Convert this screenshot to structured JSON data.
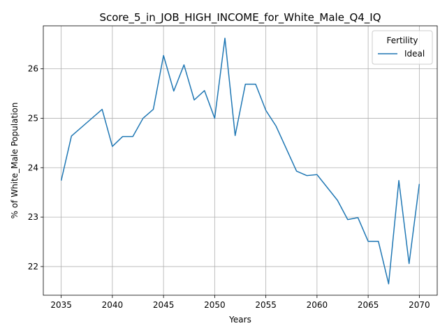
{
  "chart_data": {
    "type": "line",
    "title": "Score_5_in_JOB_HIGH_INCOME_for_White_Male_Q4_IQ",
    "xlabel": "Years",
    "ylabel": "% of White_Male Population",
    "xlim": [
      2033.25,
      2071.75
    ],
    "ylim": [
      21.42,
      26.87
    ],
    "xticks": [
      2035,
      2040,
      2045,
      2050,
      2055,
      2060,
      2065,
      2070
    ],
    "yticks": [
      22,
      23,
      24,
      25,
      26
    ],
    "grid": true,
    "legend": {
      "title": "Fertility",
      "position": "top-right"
    },
    "series": [
      {
        "name": "Ideal",
        "color": "#1f77b4",
        "x": [
          2035,
          2036,
          2039,
          2040,
          2041,
          2042,
          2043,
          2044,
          2045,
          2046,
          2047,
          2048,
          2049,
          2050,
          2051,
          2052,
          2053,
          2054,
          2055,
          2056,
          2058,
          2059,
          2060,
          2062,
          2063,
          2064,
          2065,
          2066,
          2067,
          2068,
          2069,
          2070
        ],
        "values": [
          23.74,
          24.64,
          25.18,
          24.43,
          24.63,
          24.63,
          25.0,
          25.18,
          26.27,
          25.55,
          26.08,
          25.37,
          25.56,
          25.0,
          26.62,
          24.65,
          25.69,
          25.69,
          25.16,
          24.84,
          23.93,
          23.84,
          23.86,
          23.34,
          22.95,
          22.99,
          22.51,
          22.51,
          21.65,
          23.74,
          22.06,
          23.67
        ]
      }
    ]
  }
}
